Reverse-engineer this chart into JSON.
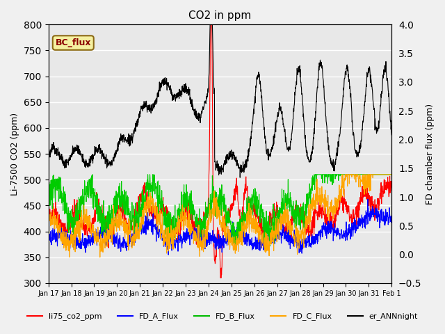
{
  "title": "CO2 in ppm",
  "ylabel_left": "Li-7500 CO2 (ppm)",
  "ylabel_right": "FD chamber flux (ppm)",
  "ylim_left": [
    300,
    800
  ],
  "ylim_right": [
    -0.5,
    4.0
  ],
  "yticks_left": [
    300,
    350,
    400,
    450,
    500,
    550,
    600,
    650,
    700,
    750,
    800
  ],
  "yticks_right": [
    -0.5,
    0.0,
    0.5,
    1.0,
    1.5,
    2.0,
    2.5,
    3.0,
    3.5,
    4.0
  ],
  "xlim": [
    0,
    15.5
  ],
  "xtick_labels": [
    "Jan 17",
    "Jan 18",
    "Jan 19",
    "Jan 20",
    "Jan 21",
    "Jan 22",
    "Jan 23",
    "Jan 24",
    "Jan 25",
    "Jan 26",
    "Jan 27",
    "Jan 28",
    "Jan 29",
    "Jan 30",
    "Jan 31",
    "Feb 1"
  ],
  "bc_flux_label": "BC_flux",
  "bc_flux_box_color": "#f5f0a0",
  "bc_flux_box_edge": "#8B6914",
  "bc_flux_text_color": "#8B0000",
  "legend_labels": [
    "li75_co2_ppm",
    "FD_A_Flux",
    "FD_B_Flux",
    "FD_C_Flux",
    "er_ANNnight"
  ],
  "legend_colors": [
    "#ff0000",
    "#0000ff",
    "#00bb00",
    "#ffa500",
    "#000000"
  ],
  "legend_linestyles": [
    "-",
    "-",
    "-",
    "-",
    "-"
  ],
  "series_colors": {
    "li75": "#ff0000",
    "fd_a": "#0000ff",
    "fd_b": "#00cc00",
    "fd_c": "#ffa500",
    "ann": "#000000"
  },
  "background_color": "#e8e8e8",
  "grid_color": "#ffffff"
}
